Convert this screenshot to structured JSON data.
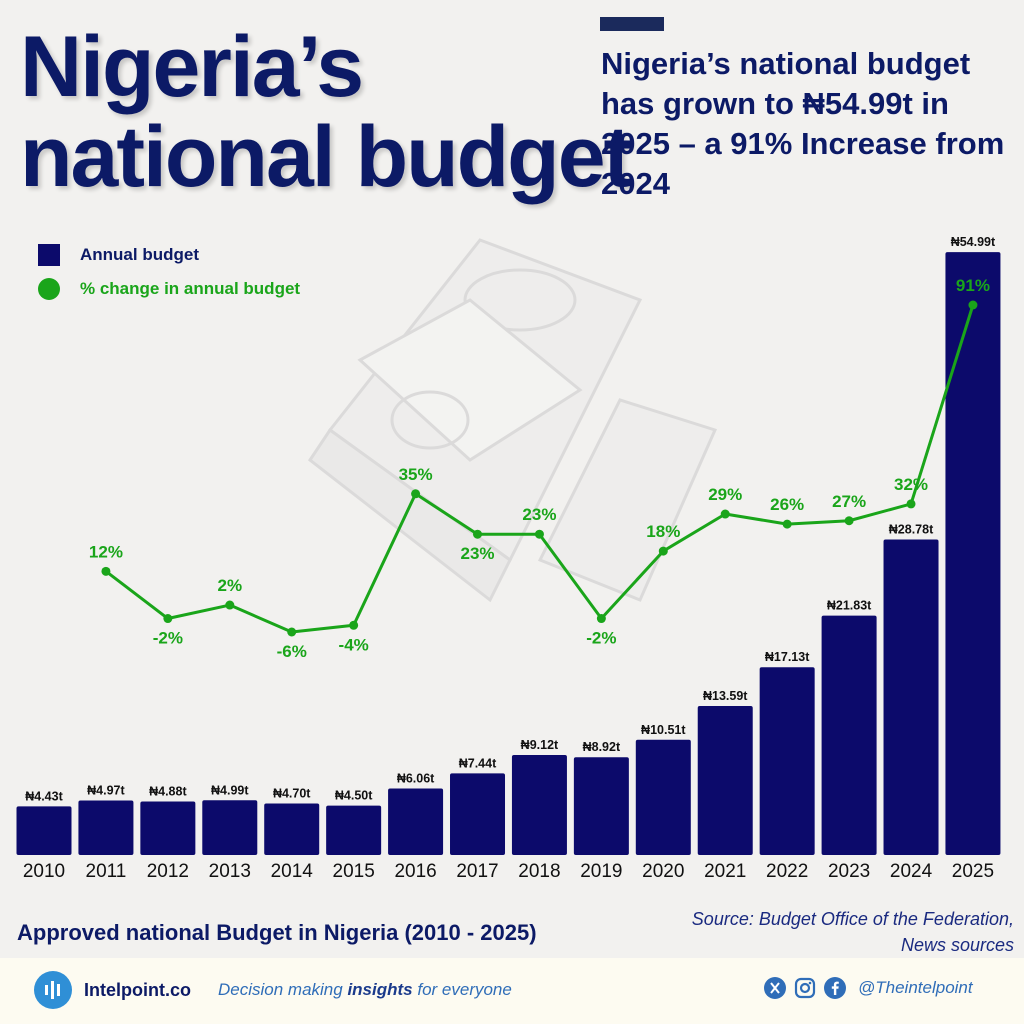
{
  "title": {
    "line1": "Nigeria’s",
    "line2": "national budget"
  },
  "headline": "Nigeria’s national budget has grown to ₦54.99t in 2025 – a 91% Increase from 2024",
  "legend": {
    "bar_label": "Annual budget",
    "line_label": "% change in annual budget"
  },
  "colors": {
    "bar": "#0c0a6b",
    "line": "#1aa51a",
    "title": "#0c1a66"
  },
  "chart_data": {
    "type": "bar",
    "title": "Approved national Budget in Nigeria (2010 - 2025)",
    "categories": [
      "2010",
      "2011",
      "2012",
      "2013",
      "2014",
      "2015",
      "2016",
      "2017",
      "2018",
      "2019",
      "2020",
      "2021",
      "2022",
      "2023",
      "2024",
      "2025"
    ],
    "series": [
      {
        "name": "Annual budget",
        "type": "bar",
        "values": [
          4.43,
          4.97,
          4.88,
          4.99,
          4.7,
          4.5,
          6.06,
          7.44,
          9.12,
          8.92,
          10.51,
          13.59,
          17.13,
          21.83,
          28.78,
          54.99
        ],
        "labels": [
          "₦4.43t",
          "₦4.97t",
          "₦4.88t",
          "₦4.99t",
          "₦4.70t",
          "₦4.50t",
          "₦6.06t",
          "₦7.44t",
          "₦9.12t",
          "₦8.92t",
          "₦10.51t",
          "₦13.59t",
          "₦17.13t",
          "₦21.83t",
          "₦28.78t",
          "₦54.99t"
        ]
      },
      {
        "name": "% change in annual budget",
        "type": "line",
        "values": [
          null,
          12,
          -2,
          2,
          -6,
          -4,
          35,
          23,
          23,
          -2,
          18,
          29,
          26,
          27,
          32,
          91
        ],
        "labels": [
          "",
          "12%",
          "-2%",
          "2%",
          "-6%",
          "-4%",
          "35%",
          "23%",
          "23%",
          "-2%",
          "18%",
          "29%",
          "26%",
          "27%",
          "32%",
          "91%"
        ]
      }
    ],
    "ylim_bar": [
      0,
      55
    ],
    "ylim_line": [
      -30,
      100
    ],
    "xlabel": "",
    "ylabel": "",
    "grid": false,
    "legend_position": "top-left"
  },
  "source": {
    "line1": "Source: Budget Office of the Federation,",
    "line2": "News sources"
  },
  "footer": {
    "brand": "Intelpoint.co",
    "tagline_pre": "Decision making ",
    "tagline_bold": "insights",
    "tagline_post": " for everyone",
    "handle": "@Theintelpoint"
  }
}
